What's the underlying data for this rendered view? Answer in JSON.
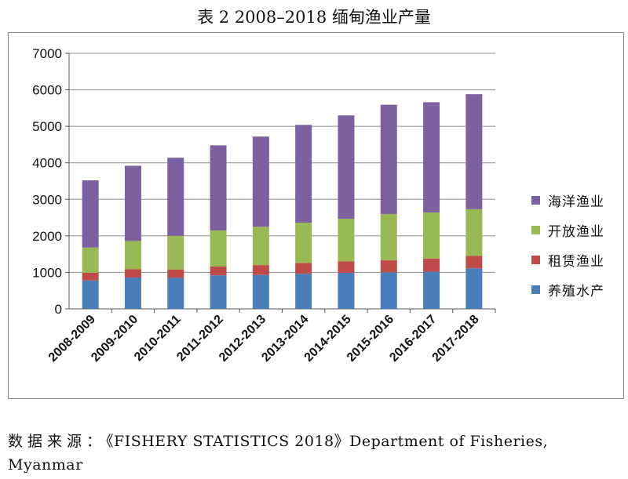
{
  "title": "表 2 2008–2018 缅甸渔业产量",
  "source": {
    "label": "数据来源：",
    "text": "《FISHERY STATISTICS 2018》Department of Fisheries, Myanmar"
  },
  "colors": {
    "养殖水产": "#4a7ebb",
    "租赁渔业": "#be4b48",
    "开放渔业": "#98b954",
    "海洋渔业": "#7d60a0"
  },
  "chart_data": {
    "type": "bar",
    "stacked": true,
    "title": "",
    "xlabel": "",
    "ylabel": "",
    "ylim": [
      0,
      7000
    ],
    "yticks": [
      0,
      1000,
      2000,
      3000,
      4000,
      5000,
      6000,
      7000
    ],
    "grid": true,
    "legend_position": "right",
    "categories": [
      "2008-2009",
      "2009-2010",
      "2010-2011",
      "2011-2012",
      "2012-2013",
      "2013-2014",
      "2014-2015",
      "2015-2016",
      "2016-2017",
      "2017-2018"
    ],
    "series": [
      {
        "name": "养殖水产",
        "values": [
          780,
          860,
          850,
          920,
          930,
          960,
          990,
          1000,
          1020,
          1110
        ]
      },
      {
        "name": "租赁渔业",
        "values": [
          210,
          230,
          230,
          240,
          270,
          300,
          310,
          330,
          360,
          340
        ]
      },
      {
        "name": "开放渔业",
        "values": [
          690,
          770,
          920,
          990,
          1050,
          1100,
          1170,
          1270,
          1260,
          1280
        ]
      },
      {
        "name": "海洋渔业",
        "values": [
          1840,
          2060,
          2140,
          2330,
          2470,
          2680,
          2830,
          2990,
          3020,
          3150
        ]
      }
    ],
    "legend_order": [
      "海洋渔业",
      "开放渔业",
      "租赁渔业",
      "养殖水产"
    ]
  }
}
